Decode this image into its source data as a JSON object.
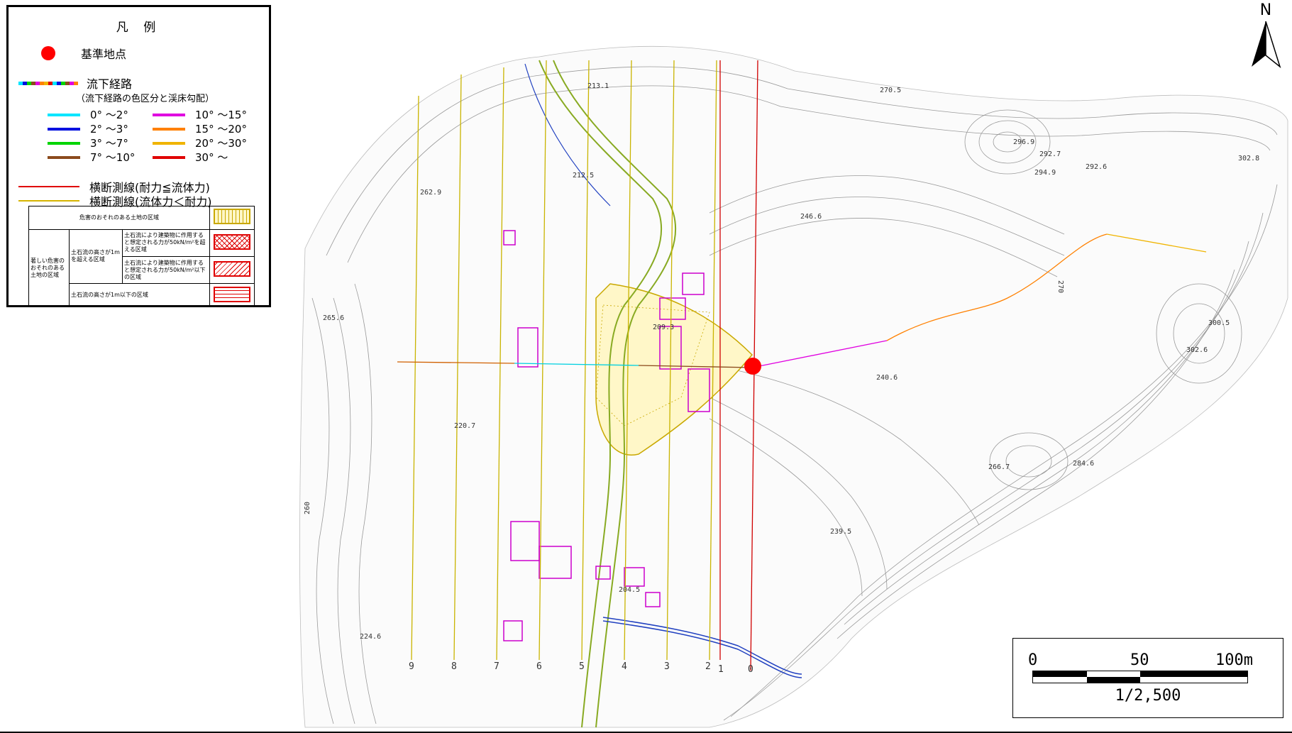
{
  "legend": {
    "title": "凡 例",
    "reference_point": "基準地点",
    "flow_route": "流下経路",
    "flow_route_note": "（流下経路の色区分と渓床勾配）",
    "gradients": [
      {
        "label": "0° 〜2°",
        "color": "#00e5ff"
      },
      {
        "label": "2° 〜3°",
        "color": "#0010e0"
      },
      {
        "label": "3° 〜7°",
        "color": "#00d400"
      },
      {
        "label": "7° 〜10°",
        "color": "#8b4a1c"
      },
      {
        "label": "10° 〜15°",
        "color": "#e000e0"
      },
      {
        "label": "15° 〜20°",
        "color": "#ff8000"
      },
      {
        "label": "20° 〜30°",
        "color": "#f0b400"
      },
      {
        "label": "30° 〜",
        "color": "#e00000"
      }
    ],
    "cross_section_red": "横断測線(耐力≦流体力)",
    "cross_section_yellow": "横断測線(流体力＜耐力)",
    "zones": {
      "hazard_area": "危害のおそれのある土地の区域",
      "severe_hazard_area": "著しい危害のおそれのある土地の区域",
      "height_over_1m": "土石流の高さが1mを超える区域",
      "force_over_50": "土石流により建築物に作用すると想定される力が50kN/m²を超える区域",
      "force_under_50": "土石流により建築物に作用すると想定される力が50kN/m²以下の区域",
      "height_under_1m": "土石流の高さが1m以下の区域"
    }
  },
  "north": "N",
  "scale": {
    "labels": [
      "0",
      "50",
      "100m"
    ],
    "ratio": "1/2,500"
  },
  "map": {
    "elevations": [
      "213.1",
      "270.5",
      "296.9",
      "292.7",
      "294.9",
      "292.6",
      "302.8",
      "212.5",
      "262.9",
      "246.6",
      "265.6",
      "209.3",
      "300.5",
      "302.6",
      "240.6",
      "220.7",
      "266.7",
      "284.6",
      "239.5",
      "204.5",
      "224.6",
      "260",
      "270"
    ],
    "cross_section_numbers": [
      "9",
      "8",
      "7",
      "6",
      "5",
      "4",
      "3",
      "2",
      "1",
      "0"
    ]
  }
}
